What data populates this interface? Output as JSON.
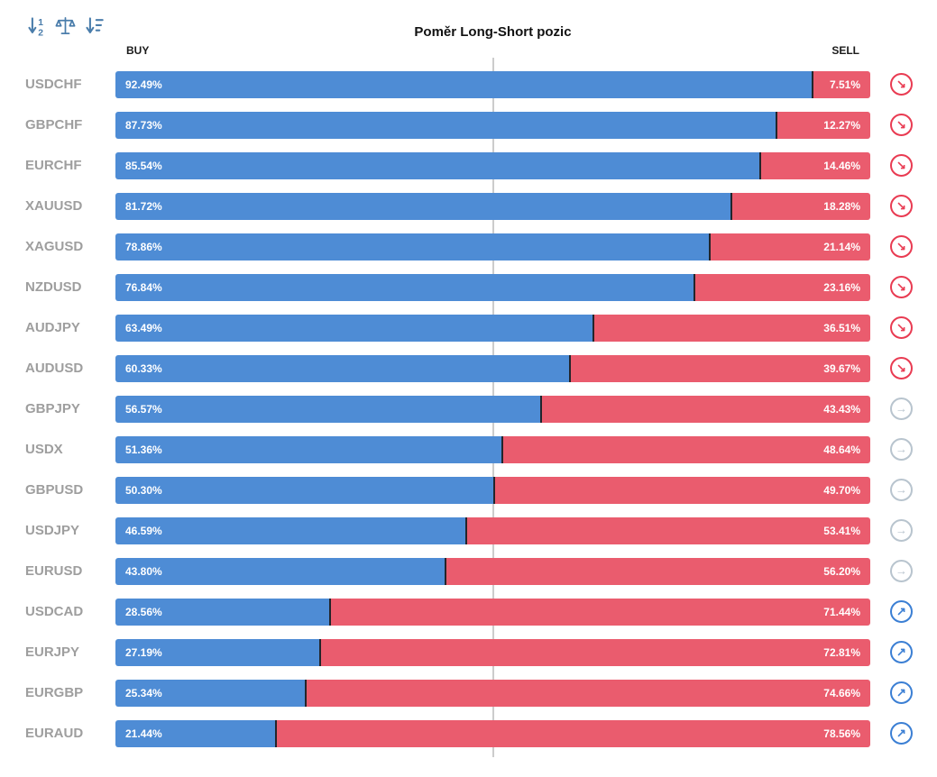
{
  "title": "Poměr Long-Short pozic",
  "header": {
    "buy_label": "BUY",
    "sell_label": "SELL"
  },
  "toolbar": {
    "icons": [
      {
        "name": "sort-numeric-icon"
      },
      {
        "name": "balance-scale-icon"
      },
      {
        "name": "sort-amount-icon"
      }
    ]
  },
  "colors": {
    "icon_color": "#4a7dab",
    "buy_bar": "#4e8cd5",
    "sell_bar": "#ea5c6e",
    "bar_divider": "#23252b",
    "pair_label": "#9e9e9e",
    "center_line": "#cccccc",
    "signal_down": "#e93b52",
    "signal_neutral": "#b8c4ce",
    "signal_up": "#3b7fd4"
  },
  "signal_glyphs": {
    "down": "↘",
    "neutral": "→",
    "up": "↗"
  },
  "rows": [
    {
      "pair": "USDCHF",
      "buy": 92.49,
      "sell": 7.51,
      "buy_label": "92.49%",
      "sell_label": "7.51%",
      "signal": "down"
    },
    {
      "pair": "GBPCHF",
      "buy": 87.73,
      "sell": 12.27,
      "buy_label": "87.73%",
      "sell_label": "12.27%",
      "signal": "down"
    },
    {
      "pair": "EURCHF",
      "buy": 85.54,
      "sell": 14.46,
      "buy_label": "85.54%",
      "sell_label": "14.46%",
      "signal": "down"
    },
    {
      "pair": "XAUUSD",
      "buy": 81.72,
      "sell": 18.28,
      "buy_label": "81.72%",
      "sell_label": "18.28%",
      "signal": "down"
    },
    {
      "pair": "XAGUSD",
      "buy": 78.86,
      "sell": 21.14,
      "buy_label": "78.86%",
      "sell_label": "21.14%",
      "signal": "down"
    },
    {
      "pair": "NZDUSD",
      "buy": 76.84,
      "sell": 23.16,
      "buy_label": "76.84%",
      "sell_label": "23.16%",
      "signal": "down"
    },
    {
      "pair": "AUDJPY",
      "buy": 63.49,
      "sell": 36.51,
      "buy_label": "63.49%",
      "sell_label": "36.51%",
      "signal": "down"
    },
    {
      "pair": "AUDUSD",
      "buy": 60.33,
      "sell": 39.67,
      "buy_label": "60.33%",
      "sell_label": "39.67%",
      "signal": "down"
    },
    {
      "pair": "GBPJPY",
      "buy": 56.57,
      "sell": 43.43,
      "buy_label": "56.57%",
      "sell_label": "43.43%",
      "signal": "neutral"
    },
    {
      "pair": "USDX",
      "buy": 51.36,
      "sell": 48.64,
      "buy_label": "51.36%",
      "sell_label": "48.64%",
      "signal": "neutral"
    },
    {
      "pair": "GBPUSD",
      "buy": 50.3,
      "sell": 49.7,
      "buy_label": "50.30%",
      "sell_label": "49.70%",
      "signal": "neutral"
    },
    {
      "pair": "USDJPY",
      "buy": 46.59,
      "sell": 53.41,
      "buy_label": "46.59%",
      "sell_label": "53.41%",
      "signal": "neutral"
    },
    {
      "pair": "EURUSD",
      "buy": 43.8,
      "sell": 56.2,
      "buy_label": "43.80%",
      "sell_label": "56.20%",
      "signal": "neutral"
    },
    {
      "pair": "USDCAD",
      "buy": 28.56,
      "sell": 71.44,
      "buy_label": "28.56%",
      "sell_label": "71.44%",
      "signal": "up"
    },
    {
      "pair": "EURJPY",
      "buy": 27.19,
      "sell": 72.81,
      "buy_label": "27.19%",
      "sell_label": "72.81%",
      "signal": "up"
    },
    {
      "pair": "EURGBP",
      "buy": 25.34,
      "sell": 74.66,
      "buy_label": "25.34%",
      "sell_label": "74.66%",
      "signal": "up"
    },
    {
      "pair": "EURAUD",
      "buy": 21.44,
      "sell": 78.56,
      "buy_label": "21.44%",
      "sell_label": "78.56%",
      "signal": "up"
    }
  ],
  "chart_data": {
    "type": "bar",
    "orientation": "horizontal",
    "stacked": true,
    "title": "Poměr Long-Short pozic",
    "categories": [
      "USDCHF",
      "GBPCHF",
      "EURCHF",
      "XAUUSD",
      "XAGUSD",
      "NZDUSD",
      "AUDJPY",
      "AUDUSD",
      "GBPJPY",
      "USDX",
      "GBPUSD",
      "USDJPY",
      "EURUSD",
      "USDCAD",
      "EURJPY",
      "EURGBP",
      "EURAUD"
    ],
    "series": [
      {
        "name": "BUY",
        "color": "#4e8cd5",
        "values": [
          92.49,
          87.73,
          85.54,
          81.72,
          78.86,
          76.84,
          63.49,
          60.33,
          56.57,
          51.36,
          50.3,
          46.59,
          43.8,
          28.56,
          27.19,
          25.34,
          21.44
        ]
      },
      {
        "name": "SELL",
        "color": "#ea5c6e",
        "values": [
          7.51,
          12.27,
          14.46,
          18.28,
          21.14,
          23.16,
          36.51,
          39.67,
          43.43,
          48.64,
          49.7,
          53.41,
          56.2,
          71.44,
          72.81,
          74.66,
          78.56
        ]
      }
    ],
    "xlim": [
      0,
      100
    ],
    "center_reference_line": 50,
    "grid": false,
    "legend_position": "top, BUY left / SELL right",
    "value_labels": "inside bar ends, percent with 2 decimals"
  }
}
